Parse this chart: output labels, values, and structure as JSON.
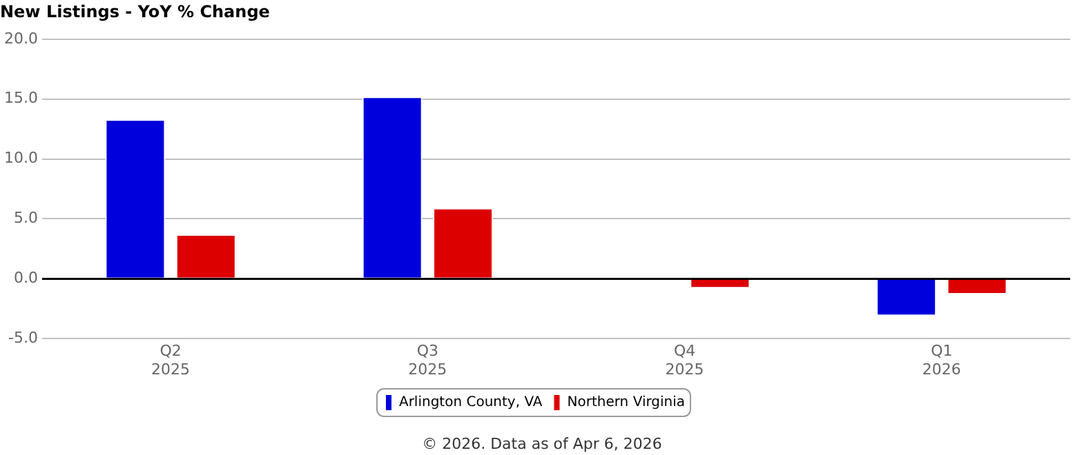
{
  "chart_data": {
    "type": "bar",
    "title": "New Listings - YoY % Change",
    "categories": [
      "Q2 2025",
      "Q3 2025",
      "Q4 2025",
      "Q1 2026"
    ],
    "series": [
      {
        "name": "Arlington County, VA",
        "color": "#0000dd",
        "values": [
          13.3,
          15.2,
          0,
          -3.1
        ]
      },
      {
        "name": "Northern Virginia",
        "color": "#dd0000",
        "values": [
          3.7,
          5.9,
          -0.8,
          -1.3
        ]
      }
    ],
    "ylim": [
      -5,
      20
    ],
    "yticks": [
      {
        "value": -5,
        "label": "-5.0"
      },
      {
        "value": 0,
        "label": "0.0"
      },
      {
        "value": 5,
        "label": "5.0"
      },
      {
        "value": 10,
        "label": "10.0"
      },
      {
        "value": 15,
        "label": "15.0"
      },
      {
        "value": 20,
        "label": "20.0"
      }
    ],
    "grid": "y",
    "legend": "bottom",
    "annotations": [
      "© 2026. Data as of Apr 6, 2026"
    ]
  }
}
